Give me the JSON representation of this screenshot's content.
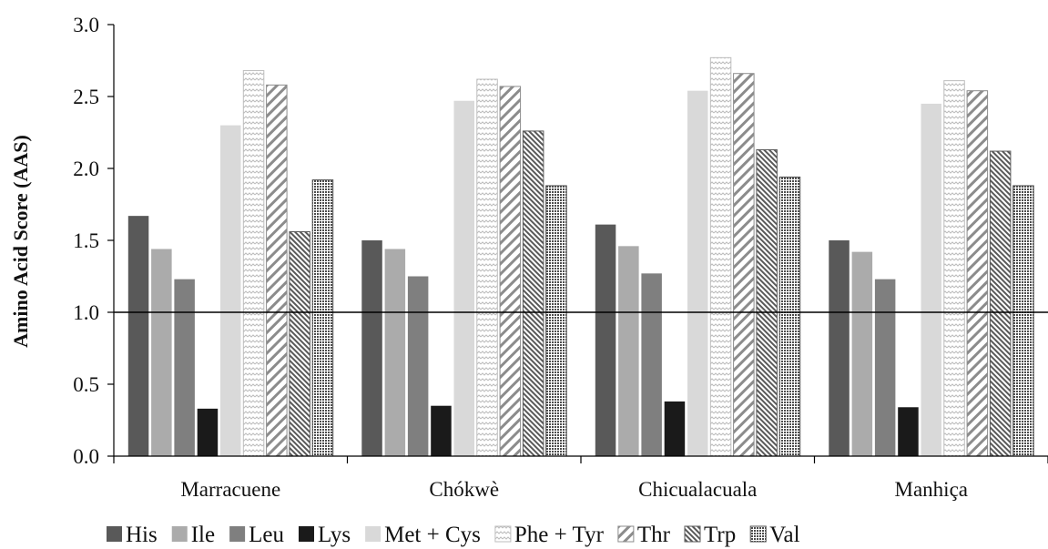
{
  "chart_data": {
    "type": "bar",
    "title": "",
    "xlabel": "",
    "ylabel": "Amino Acid Score (AAS)",
    "ylim": [
      0,
      3.0
    ],
    "yticks": [
      "0.0",
      "0.5",
      "1.0",
      "1.5",
      "2.0",
      "2.5",
      "3.0"
    ],
    "reference_line": 1.0,
    "grid": false,
    "legend_position": "bottom",
    "categories": [
      "Marracuene",
      "Chókwè",
      "Chicualacuala",
      "Manhiça"
    ],
    "series": [
      {
        "name": "His",
        "values": [
          1.67,
          1.5,
          1.61,
          1.5
        ],
        "color": "#595959",
        "pattern": "solid"
      },
      {
        "name": "Ile",
        "values": [
          1.44,
          1.44,
          1.46,
          1.42
        ],
        "color": "#ababab",
        "pattern": "solid"
      },
      {
        "name": "Leu",
        "values": [
          1.23,
          1.25,
          1.27,
          1.23
        ],
        "color": "#7f7f7f",
        "pattern": "solid"
      },
      {
        "name": "Lys",
        "values": [
          0.33,
          0.35,
          0.38,
          0.34
        ],
        "color": "#1a1a1a",
        "pattern": "solid"
      },
      {
        "name": "Met + Cys",
        "values": [
          2.3,
          2.47,
          2.54,
          2.45
        ],
        "color": "#d9d9d9",
        "pattern": "solid"
      },
      {
        "name": "Phe + Tyr",
        "values": [
          2.68,
          2.62,
          2.77,
          2.61
        ],
        "color": "#bdbdbd",
        "pattern": "zigzag"
      },
      {
        "name": "Thr",
        "values": [
          2.58,
          2.57,
          2.66,
          2.54
        ],
        "color": "#8c8c8c",
        "pattern": "wide-diagonal"
      },
      {
        "name": "Trp",
        "values": [
          1.56,
          2.26,
          2.13,
          2.12
        ],
        "color": "#5a5a5a",
        "pattern": "dense-diagonal"
      },
      {
        "name": "Val",
        "values": [
          1.92,
          1.88,
          1.94,
          1.88
        ],
        "color": "#4d4d4d",
        "pattern": "dots"
      }
    ]
  }
}
